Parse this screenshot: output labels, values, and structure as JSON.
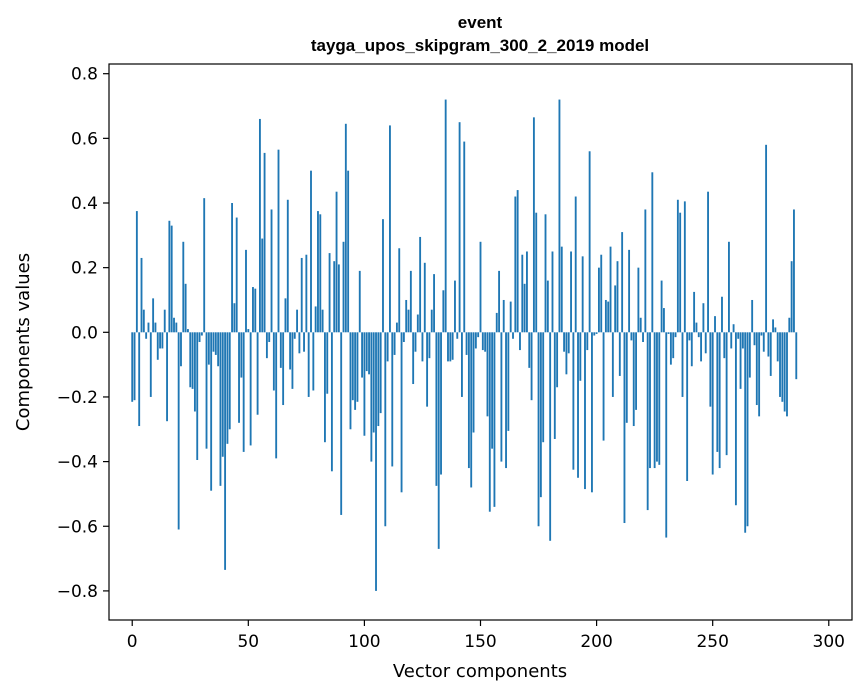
{
  "chart_data": {
    "type": "bar",
    "title_line1": "event",
    "title_line2": "tayga_upos_skipgram_300_2_2019 model",
    "xlabel": "Vector components",
    "ylabel": "Components values",
    "xlim": [
      -10,
      310
    ],
    "ylim": [
      -0.89,
      0.83
    ],
    "xticks": [
      0,
      50,
      100,
      150,
      200,
      250,
      300
    ],
    "xtick_labels": [
      "0",
      "50",
      "100",
      "150",
      "200",
      "250",
      "300"
    ],
    "yticks": [
      -0.8,
      -0.6,
      -0.4,
      -0.2,
      0.0,
      0.2,
      0.4,
      0.6,
      0.8
    ],
    "ytick_labels": [
      "−0.8",
      "−0.6",
      "−0.4",
      "−0.2",
      "0.0",
      "0.2",
      "0.4",
      "0.6",
      "0.8"
    ],
    "bar_color": "#1f77b4",
    "values": [
      -0.215,
      -0.21,
      0.375,
      -0.29,
      0.23,
      0.07,
      -0.02,
      0.03,
      -0.2,
      0.105,
      0.03,
      -0.085,
      -0.05,
      -0.05,
      0.07,
      -0.275,
      0.345,
      0.33,
      0.045,
      0.03,
      -0.61,
      -0.105,
      0.28,
      0.15,
      0.01,
      -0.17,
      -0.175,
      -0.245,
      -0.395,
      -0.03,
      -0.01,
      0.415,
      -0.36,
      -0.1,
      -0.49,
      -0.06,
      -0.07,
      -0.105,
      -0.475,
      -0.385,
      -0.735,
      -0.345,
      -0.3,
      0.4,
      0.09,
      0.355,
      -0.28,
      -0.14,
      -0.37,
      0.255,
      0.01,
      -0.35,
      0.14,
      0.135,
      -0.255,
      0.66,
      0.29,
      0.555,
      -0.08,
      -0.03,
      0.38,
      -0.18,
      -0.39,
      0.565,
      -0.11,
      -0.225,
      0.105,
      0.41,
      -0.115,
      -0.175,
      -0.02,
      0.07,
      -0.065,
      0.23,
      -0.06,
      0.24,
      -0.2,
      0.5,
      -0.18,
      0.08,
      0.375,
      0.365,
      0.07,
      -0.34,
      -0.19,
      0.245,
      -0.43,
      0.22,
      0.435,
      0.21,
      -0.565,
      0.28,
      0.645,
      0.5,
      -0.3,
      -0.21,
      -0.24,
      -0.215,
      0.19,
      -0.14,
      -0.32,
      -0.12,
      -0.13,
      -0.4,
      -0.31,
      -0.8,
      -0.29,
      -0.25,
      0.35,
      -0.6,
      -0.09,
      0.64,
      -0.415,
      -0.07,
      0.03,
      0.26,
      -0.495,
      -0.03,
      0.1,
      0.07,
      0.19,
      -0.16,
      -0.06,
      0.055,
      0.295,
      -0.09,
      0.215,
      -0.23,
      -0.08,
      0.07,
      0.18,
      -0.475,
      -0.67,
      -0.44,
      0.13,
      0.72,
      -0.09,
      -0.09,
      -0.085,
      0.16,
      -0.02,
      0.65,
      -0.2,
      0.59,
      -0.07,
      -0.42,
      -0.48,
      -0.31,
      -0.05,
      -0.015,
      0.28,
      -0.055,
      -0.06,
      -0.26,
      -0.555,
      -0.36,
      -0.54,
      0.06,
      0.19,
      -0.4,
      0.1,
      -0.42,
      -0.305,
      0.095,
      -0.02,
      0.42,
      0.44,
      -0.055,
      0.24,
      0.15,
      0.25,
      -0.11,
      -0.21,
      0.665,
      0.37,
      -0.6,
      -0.51,
      -0.34,
      0.365,
      0.16,
      -0.645,
      0.25,
      -0.33,
      -0.17,
      0.72,
      0.265,
      -0.06,
      -0.13,
      -0.065,
      0.25,
      -0.425,
      0.42,
      -0.45,
      -0.15,
      0.235,
      -0.485,
      -0.055,
      0.56,
      -0.495,
      -0.01,
      -0.005,
      0.2,
      0.24,
      -0.335,
      0.1,
      0.095,
      0.265,
      -0.2,
      0.145,
      0.22,
      -0.135,
      0.31,
      -0.59,
      -0.28,
      0.255,
      -0.025,
      -0.29,
      -0.24,
      0.2,
      0.045,
      -0.03,
      0.38,
      -0.55,
      -0.42,
      0.495,
      -0.42,
      -0.4,
      -0.41,
      0.16,
      0.075,
      -0.635,
      -0.005,
      -0.1,
      -0.08,
      -0.015,
      0.41,
      0.37,
      -0.2,
      0.405,
      -0.46,
      -0.025,
      -0.105,
      0.125,
      0.03,
      -0.015,
      -0.09,
      0.09,
      -0.065,
      0.435,
      -0.23,
      -0.44,
      0.05,
      -0.37,
      -0.42,
      0.11,
      -0.08,
      -0.38,
      0.28,
      -0.05,
      0.025,
      -0.535,
      -0.02,
      -0.175,
      -0.05,
      -0.62,
      -0.6,
      -0.14,
      0.1,
      -0.04,
      -0.225,
      -0.26,
      -0.01,
      -0.06,
      0.58,
      -0.075,
      -0.135,
      0.04,
      0.015,
      -0.09,
      -0.2,
      -0.215,
      -0.245,
      -0.26,
      0.045,
      0.22,
      0.38,
      -0.145
    ]
  }
}
